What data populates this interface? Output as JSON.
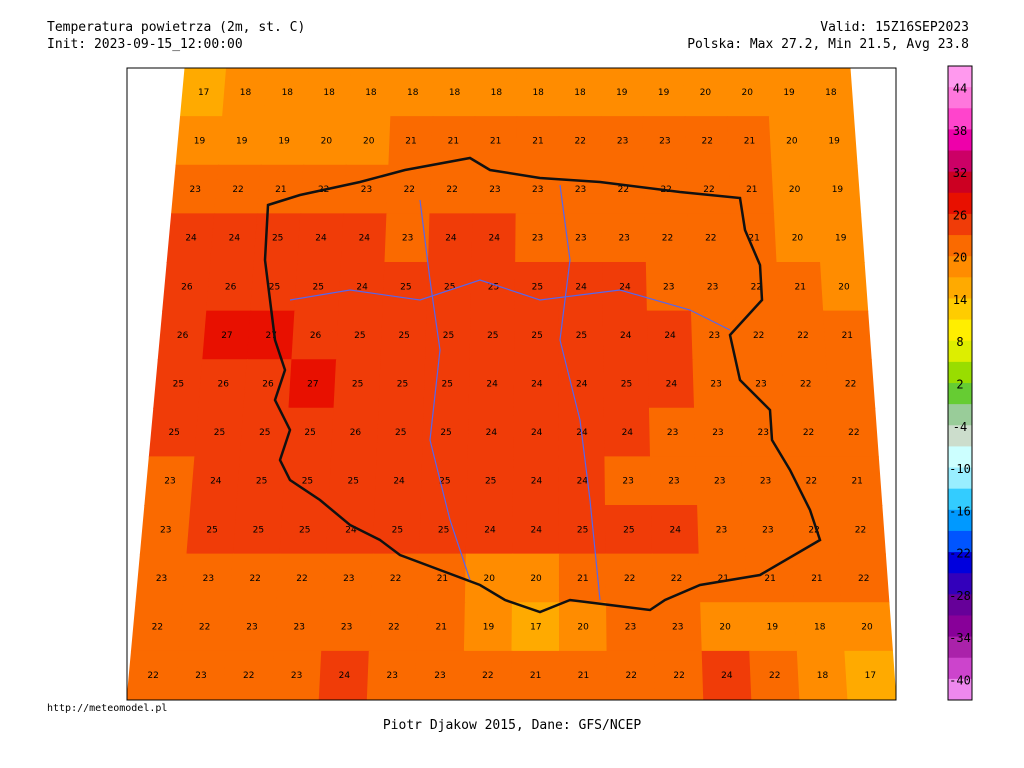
{
  "header": {
    "title": "Temperatura powietrza (2m, st. C)",
    "init": "Init: 2023-09-15_12:00:00",
    "valid": "Valid: 15Z16SEP2023",
    "stats": "Polska: Max 27.2, Min 21.5, Avg 23.8"
  },
  "footer": {
    "url": "http://meteomodel.pl",
    "credit": "Piotr Djakow 2015, Dane: GFS/NCEP"
  },
  "legend": {
    "labels": [
      44,
      38,
      32,
      26,
      20,
      14,
      8,
      2,
      -4,
      -10,
      -16,
      -22,
      -28,
      -34,
      -40
    ],
    "colors": [
      "#ff99ee",
      "#ff77dd",
      "#ff44cc",
      "#ee00aa",
      "#cc0066",
      "#cc0022",
      "#e81000",
      "#f03c08",
      "#fa6a00",
      "#ff8c00",
      "#ffaa00",
      "#ffcc00",
      "#ffee00",
      "#ddee00",
      "#99dd00",
      "#66cc33",
      "#99cc99",
      "#ccddcc",
      "#ccffff",
      "#99eeff",
      "#33ccff",
      "#0099ff",
      "#0055ff",
      "#0000dd",
      "#3300bb",
      "#660099",
      "#880099",
      "#aa22aa",
      "#cc44cc",
      "#ee88ee"
    ]
  },
  "map": {
    "grid": [
      [
        17,
        18,
        18,
        18,
        18,
        18,
        18,
        18,
        18,
        18,
        19,
        19,
        20,
        20,
        19,
        18
      ],
      [
        19,
        19,
        19,
        20,
        20,
        21,
        21,
        21,
        21,
        22,
        23,
        23,
        22,
        21,
        20,
        19
      ],
      [
        23,
        22,
        21,
        22,
        23,
        22,
        22,
        23,
        23,
        23,
        22,
        22,
        22,
        21,
        20,
        19
      ],
      [
        24,
        24,
        25,
        24,
        24,
        23,
        24,
        24,
        23,
        23,
        23,
        22,
        22,
        21,
        20,
        19
      ],
      [
        26,
        26,
        25,
        25,
        24,
        25,
        25,
        25,
        25,
        24,
        24,
        23,
        23,
        22,
        21,
        20
      ],
      [
        26,
        27,
        27,
        26,
        25,
        25,
        25,
        25,
        25,
        25,
        24,
        24,
        23,
        22,
        22,
        21
      ],
      [
        25,
        26,
        26,
        27,
        25,
        25,
        25,
        24,
        24,
        24,
        25,
        24,
        23,
        23,
        22,
        22
      ],
      [
        25,
        25,
        25,
        25,
        26,
        25,
        25,
        24,
        24,
        24,
        24,
        23,
        23,
        23,
        22,
        22
      ],
      [
        23,
        24,
        25,
        25,
        25,
        24,
        25,
        25,
        24,
        24,
        23,
        23,
        23,
        23,
        22,
        21
      ],
      [
        23,
        25,
        25,
        25,
        24,
        25,
        25,
        24,
        24,
        25,
        25,
        24,
        23,
        23,
        22,
        22
      ],
      [
        23,
        23,
        22,
        22,
        23,
        22,
        21,
        20,
        20,
        21,
        22,
        22,
        21,
        21,
        21,
        22
      ],
      [
        22,
        22,
        23,
        23,
        23,
        22,
        21,
        19,
        17,
        20,
        23,
        23,
        20,
        19,
        18,
        20
      ],
      [
        22,
        23,
        22,
        23,
        24,
        23,
        23,
        22,
        21,
        21,
        22,
        22,
        24,
        22,
        18,
        17
      ]
    ]
  }
}
